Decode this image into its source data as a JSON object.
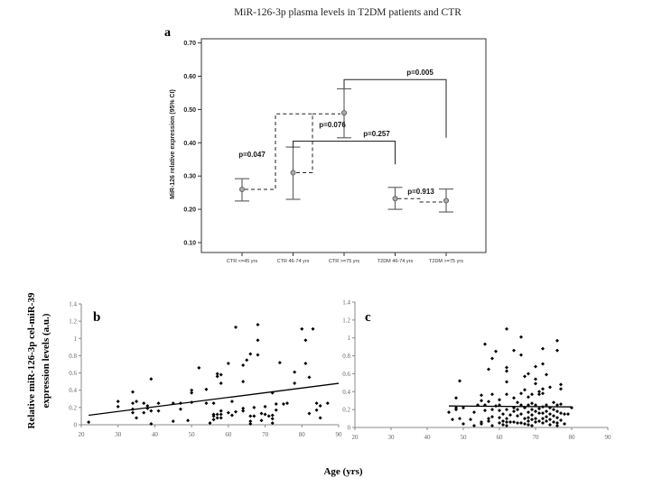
{
  "chart_data": [
    {
      "panel": "a",
      "type": "errorbar",
      "title": "MiR-126-3p plasma levels in T2DM patients and CTR",
      "ylabel": "MiR-126 relative expression (95% CI)",
      "ylim": [
        0.1,
        0.7
      ],
      "yticks": [
        "0.10",
        "0.20",
        "0.30",
        "0.40",
        "0.50",
        "0.60",
        "0.70"
      ],
      "categories": [
        "CTR <=45 yrs",
        "CTR 46-74 yrs",
        "CTR >=75 yrs",
        "T2DM 46-74 yrs",
        "T2DM >=75 yrs"
      ],
      "means": [
        0.26,
        0.31,
        0.49,
        0.232,
        0.226
      ],
      "ci_low": [
        0.225,
        0.23,
        0.415,
        0.2,
        0.192
      ],
      "ci_high": [
        0.292,
        0.387,
        0.562,
        0.266,
        0.261
      ],
      "comparisons": [
        {
          "groups": [
            "CTR <=45 yrs",
            "CTR 46-74 yrs"
          ],
          "p": "p=0.047",
          "style": "dashed"
        },
        {
          "groups": [
            "CTR 46-74 yrs",
            "CTR >=75 yrs"
          ],
          "p": "p=0.076",
          "style": "dashed"
        },
        {
          "groups": [
            "CTR 46-74 yrs",
            "T2DM 46-74 yrs"
          ],
          "p": "p=0.257",
          "style": "solid"
        },
        {
          "groups": [
            "CTR >=75 yrs",
            "T2DM >=75 yrs"
          ],
          "p": "p=0.005",
          "style": "solid"
        },
        {
          "groups": [
            "T2DM 46-74 yrs",
            "T2DM >=75 yrs"
          ],
          "p": "p=0.913",
          "style": "dashed"
        }
      ],
      "grid": false
    },
    {
      "panel": "b",
      "type": "scatter",
      "xlim": [
        20,
        90
      ],
      "ylim": [
        0,
        1.4
      ],
      "xticks": [
        "20",
        "30",
        "40",
        "50",
        "60",
        "70",
        "80",
        "90"
      ],
      "yticks": [
        "0",
        "0.2",
        "0.4",
        "0.6",
        "0.8",
        "1",
        "1.2",
        "1.4"
      ],
      "points": [
        [
          22,
          0.03
        ],
        [
          30,
          0.27
        ],
        [
          30,
          0.21
        ],
        [
          34,
          0.38
        ],
        [
          34,
          0.25
        ],
        [
          34,
          0.18
        ],
        [
          34,
          0.14
        ],
        [
          35,
          0.27
        ],
        [
          35,
          0.08
        ],
        [
          37,
          0.25
        ],
        [
          37,
          0.14
        ],
        [
          38,
          0.22
        ],
        [
          38,
          0.19
        ],
        [
          39,
          0.53
        ],
        [
          39,
          0.16
        ],
        [
          39,
          0.01
        ],
        [
          41,
          0.25
        ],
        [
          41,
          0.16
        ],
        [
          45,
          0.25
        ],
        [
          45,
          0.04
        ],
        [
          47,
          0.25
        ],
        [
          47,
          0.18
        ],
        [
          49,
          0.05
        ],
        [
          50,
          0.4
        ],
        [
          50,
          0.37
        ],
        [
          50,
          0.26
        ],
        [
          52,
          0.66
        ],
        [
          54,
          0.41
        ],
        [
          54,
          0.25
        ],
        [
          55,
          0.02
        ],
        [
          56,
          0.25
        ],
        [
          56,
          0.12
        ],
        [
          56,
          0.1
        ],
        [
          56,
          0.06
        ],
        [
          57,
          0.59
        ],
        [
          57,
          0.56
        ],
        [
          57,
          0.12
        ],
        [
          57,
          0.08
        ],
        [
          58,
          0.58
        ],
        [
          58,
          0.48
        ],
        [
          58,
          0.16
        ],
        [
          58,
          0.12
        ],
        [
          58,
          0.08
        ],
        [
          60,
          0.71
        ],
        [
          60,
          0.14
        ],
        [
          61,
          0.27
        ],
        [
          61,
          0.11
        ],
        [
          62,
          1.13
        ],
        [
          62,
          0.15
        ],
        [
          64,
          0.69
        ],
        [
          64,
          0.5
        ],
        [
          64,
          0.19
        ],
        [
          64,
          0.16
        ],
        [
          65,
          0.75
        ],
        [
          66,
          0.82
        ],
        [
          66,
          0.1
        ],
        [
          66,
          0.04
        ],
        [
          66,
          0.01
        ],
        [
          67,
          0.2
        ],
        [
          67,
          0.1
        ],
        [
          68,
          1.16
        ],
        [
          68,
          0.98
        ],
        [
          68,
          0.81
        ],
        [
          69,
          0.13
        ],
        [
          69,
          0.05
        ],
        [
          70,
          0.21
        ],
        [
          70,
          0.12
        ],
        [
          71,
          0.1
        ],
        [
          72,
          0.37
        ],
        [
          72,
          0.11
        ],
        [
          72,
          0.07
        ],
        [
          72,
          0.02
        ],
        [
          73,
          0.24
        ],
        [
          73,
          0.17
        ],
        [
          74,
          0.72
        ],
        [
          75,
          0.24
        ],
        [
          76,
          0.25
        ],
        [
          78,
          0.61
        ],
        [
          78,
          0.48
        ],
        [
          80,
          1.11
        ],
        [
          81,
          0.98
        ],
        [
          81,
          0.71
        ],
        [
          82,
          0.55
        ],
        [
          82,
          0.13
        ],
        [
          83,
          1.11
        ],
        [
          84,
          0.25
        ],
        [
          84,
          0.17
        ],
        [
          85,
          0.22
        ],
        [
          85,
          0.08
        ],
        [
          87,
          0.25
        ]
      ],
      "trendline": [
        [
          22,
          0.11
        ],
        [
          90,
          0.48
        ]
      ]
    },
    {
      "panel": "c",
      "type": "scatter",
      "xlim": [
        20,
        90
      ],
      "ylim": [
        0,
        1.4
      ],
      "xticks": [
        "20",
        "30",
        "40",
        "50",
        "60",
        "70",
        "80",
        "90"
      ],
      "yticks": [
        "0",
        "0.2",
        "0.4",
        "0.6",
        "0.8",
        "1",
        "1.2",
        "1.4"
      ],
      "points": [
        [
          46,
          0.17
        ],
        [
          47,
          0.09
        ],
        [
          48,
          0.33
        ],
        [
          48,
          0.22
        ],
        [
          48,
          0.2
        ],
        [
          49,
          0.52
        ],
        [
          49,
          0.1
        ],
        [
          50,
          0.22
        ],
        [
          50,
          0.04
        ],
        [
          52,
          0.09
        ],
        [
          53,
          0.17
        ],
        [
          53,
          0.02
        ],
        [
          54,
          0.25
        ],
        [
          55,
          0.36
        ],
        [
          55,
          0.3
        ],
        [
          55,
          0.06
        ],
        [
          55,
          0.04
        ],
        [
          56,
          0.93
        ],
        [
          56,
          0.25
        ],
        [
          56,
          0.19
        ],
        [
          57,
          0.65
        ],
        [
          57,
          0.29
        ],
        [
          57,
          0.1
        ],
        [
          57,
          0.07
        ],
        [
          58,
          0.77
        ],
        [
          58,
          0.37
        ],
        [
          58,
          0.2
        ],
        [
          58,
          0.12
        ],
        [
          58,
          0.02
        ],
        [
          59,
          0.85
        ],
        [
          59,
          0.24
        ],
        [
          60,
          0.31
        ],
        [
          60,
          0.25
        ],
        [
          60,
          0.19
        ],
        [
          60,
          0.11
        ],
        [
          60,
          0.05
        ],
        [
          61,
          0.15
        ],
        [
          61,
          0.07
        ],
        [
          61,
          0.03
        ],
        [
          62,
          1.1
        ],
        [
          62,
          0.67
        ],
        [
          62,
          0.63
        ],
        [
          62,
          0.51
        ],
        [
          62,
          0.37
        ],
        [
          62,
          0.2
        ],
        [
          62,
          0.1
        ],
        [
          62,
          0.06
        ],
        [
          62,
          0.02
        ],
        [
          63,
          0.14
        ],
        [
          63,
          0.06
        ],
        [
          64,
          0.86
        ],
        [
          64,
          0.33
        ],
        [
          64,
          0.22
        ],
        [
          64,
          0.18
        ],
        [
          64,
          0.06
        ],
        [
          65,
          0.28
        ],
        [
          65,
          0.2
        ],
        [
          65,
          0.13
        ],
        [
          65,
          0.05
        ],
        [
          66,
          1.01
        ],
        [
          66,
          0.81
        ],
        [
          66,
          0.38
        ],
        [
          66,
          0.25
        ],
        [
          66,
          0.15
        ],
        [
          66,
          0.05
        ],
        [
          67,
          0.57
        ],
        [
          67,
          0.42
        ],
        [
          67,
          0.22
        ],
        [
          67,
          0.1
        ],
        [
          67,
          0.04
        ],
        [
          68,
          0.6
        ],
        [
          68,
          0.34
        ],
        [
          68,
          0.25
        ],
        [
          68,
          0.17
        ],
        [
          68,
          0.11
        ],
        [
          68,
          0.07
        ],
        [
          68,
          0.03
        ],
        [
          69,
          0.37
        ],
        [
          69,
          0.27
        ],
        [
          69,
          0.2
        ],
        [
          69,
          0.14
        ],
        [
          69,
          0.09
        ],
        [
          69,
          0.02
        ],
        [
          70,
          0.68
        ],
        [
          70,
          0.54
        ],
        [
          70,
          0.49
        ],
        [
          70,
          0.25
        ],
        [
          70,
          0.18
        ],
        [
          70,
          0.1
        ],
        [
          70,
          0.06
        ],
        [
          71,
          0.4
        ],
        [
          71,
          0.37
        ],
        [
          71,
          0.21
        ],
        [
          71,
          0.16
        ],
        [
          71,
          0.07
        ],
        [
          72,
          0.88
        ],
        [
          72,
          0.71
        ],
        [
          72,
          0.43
        ],
        [
          72,
          0.38
        ],
        [
          72,
          0.23
        ],
        [
          72,
          0.16
        ],
        [
          72,
          0.1
        ],
        [
          72,
          0.05
        ],
        [
          73,
          0.59
        ],
        [
          73,
          0.25
        ],
        [
          73,
          0.18
        ],
        [
          73,
          0.12
        ],
        [
          73,
          0.07
        ],
        [
          74,
          0.45
        ],
        [
          74,
          0.22
        ],
        [
          74,
          0.15
        ],
        [
          74,
          0.09
        ],
        [
          74,
          0.03
        ],
        [
          75,
          0.28
        ],
        [
          75,
          0.2
        ],
        [
          75,
          0.13
        ],
        [
          75,
          0.06
        ],
        [
          76,
          0.97
        ],
        [
          76,
          0.86
        ],
        [
          76,
          0.25
        ],
        [
          76,
          0.18
        ],
        [
          76,
          0.11
        ],
        [
          76,
          0.05
        ],
        [
          76,
          0.02
        ],
        [
          77,
          0.48
        ],
        [
          77,
          0.43
        ],
        [
          77,
          0.26
        ],
        [
          77,
          0.16
        ],
        [
          77,
          0.08
        ],
        [
          78,
          0.15
        ],
        [
          78,
          0.04
        ],
        [
          79,
          0.15
        ],
        [
          80,
          0.22
        ]
      ],
      "trendline": [
        [
          46,
          0.24
        ],
        [
          80,
          0.23
        ]
      ]
    }
  ],
  "labels": {
    "panel_a": "a",
    "panel_b": "b",
    "panel_c": "c",
    "shared_ylabel_line1": "Relative miR-126-3p  cel-miR-39",
    "shared_ylabel_line2": "expression levels (a.u.)",
    "shared_xlabel": "Age (yrs)"
  }
}
